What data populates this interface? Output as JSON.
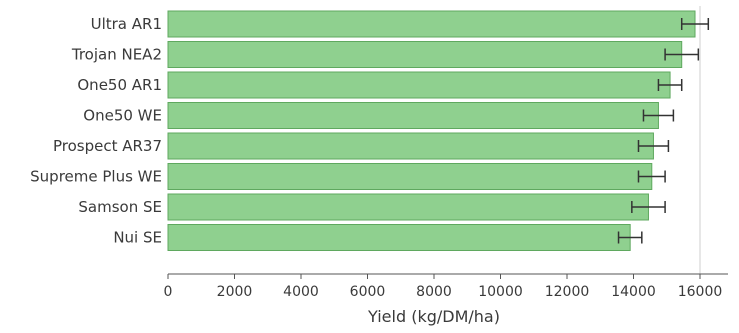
{
  "chart_data": {
    "type": "bar",
    "orientation": "horizontal",
    "categories": [
      "Ultra AR1",
      "Trojan NEA2",
      "One50 AR1",
      "One50 WE",
      "Prospect AR37",
      "Supreme Plus WE",
      "Samson SE",
      "Nui SE"
    ],
    "series": [
      {
        "values": [
          15850,
          15450,
          15100,
          14750,
          14600,
          14550,
          14450,
          13900
        ],
        "error": [
          400,
          500,
          350,
          450,
          450,
          400,
          500,
          350
        ]
      }
    ],
    "xlabel": "Yield (kg/DM/ha)",
    "ylabel": "",
    "xlim": [
      0,
      17000
    ],
    "xticks": [
      0,
      2000,
      4000,
      6000,
      8000,
      10000,
      12000,
      14000,
      16000
    ],
    "grid": "vertical gridline at 16000",
    "colors": {
      "bar_fill": "#8fd08f",
      "bar_stroke": "#5fa85f",
      "error_bar": "#333333",
      "axis": "#555555",
      "grid": "#cfcfcf"
    }
  }
}
